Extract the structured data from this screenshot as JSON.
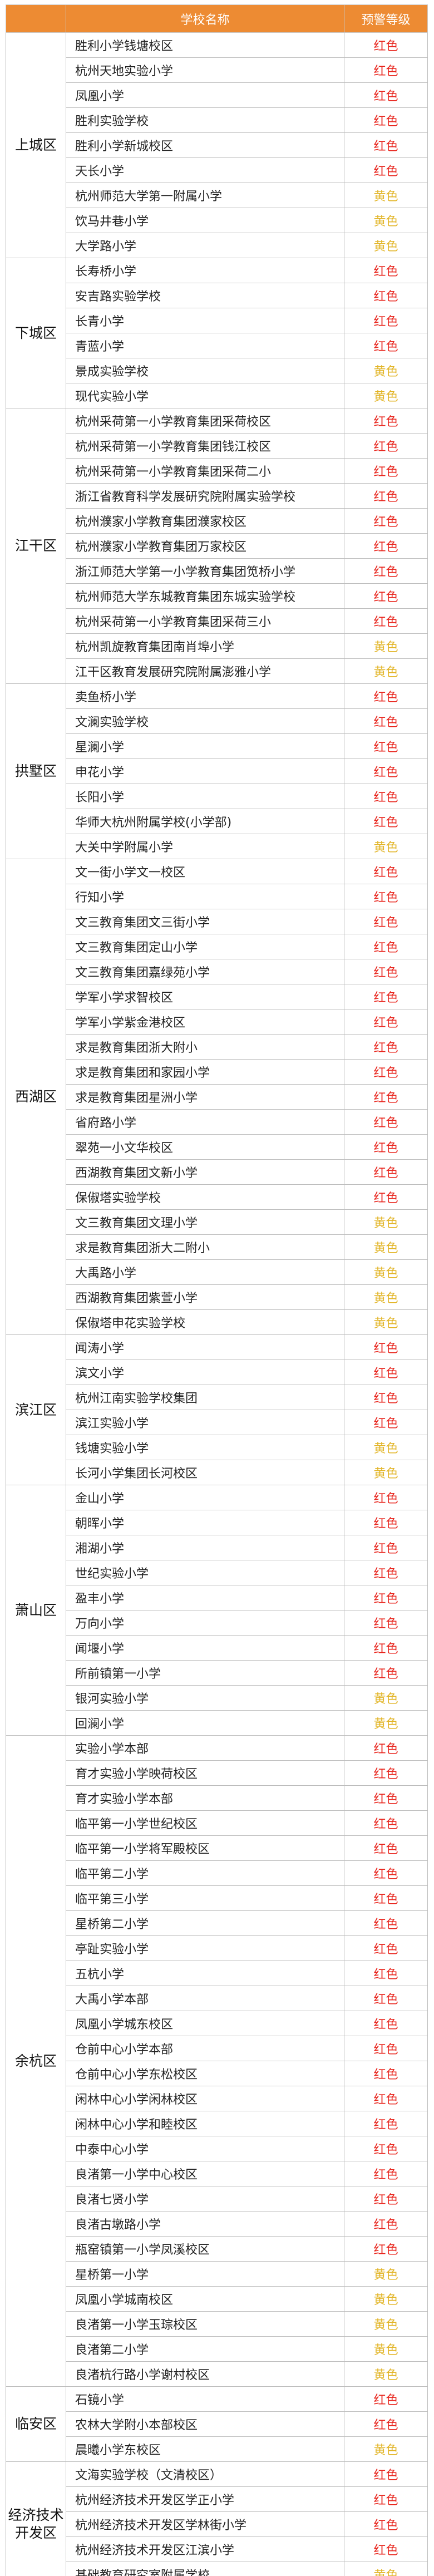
{
  "colors": {
    "header_bg": "#ed8b33",
    "red": "#e8261e",
    "yellow": "#e2b425"
  },
  "table": {
    "headers": [
      "",
      "学校名称",
      "预警等级"
    ],
    "groups": [
      {
        "district": "上城区",
        "rows": [
          [
            "胜利小学钱塘校区",
            "红色"
          ],
          [
            "杭州天地实验小学",
            "红色"
          ],
          [
            "凤凰小学",
            "红色"
          ],
          [
            "胜利实验学校",
            "红色"
          ],
          [
            "胜利小学新城校区",
            "红色"
          ],
          [
            "天长小学",
            "红色"
          ],
          [
            "杭州师范大学第一附属小学",
            "黄色"
          ],
          [
            "饮马井巷小学",
            "黄色"
          ],
          [
            "大学路小学",
            "黄色"
          ]
        ]
      },
      {
        "district": "下城区",
        "rows": [
          [
            "长寿桥小学",
            "红色"
          ],
          [
            "安吉路实验学校",
            "红色"
          ],
          [
            "长青小学",
            "红色"
          ],
          [
            "青蓝小学",
            "红色"
          ],
          [
            "景成实验学校",
            "黄色"
          ],
          [
            "现代实验小学",
            "黄色"
          ]
        ]
      },
      {
        "district": "江干区",
        "rows": [
          [
            "杭州采荷第一小学教育集团采荷校区",
            "红色"
          ],
          [
            "杭州采荷第一小学教育集团钱江校区",
            "红色"
          ],
          [
            "杭州采荷第一小学教育集团采荷二小",
            "红色"
          ],
          [
            "浙江省教育科学发展研究院附属实验学校",
            "红色"
          ],
          [
            "杭州濮家小学教育集团濮家校区",
            "红色"
          ],
          [
            "杭州濮家小学教育集团万家校区",
            "红色"
          ],
          [
            "浙江师范大学第一小学教育集团笕桥小学",
            "红色"
          ],
          [
            "杭州师范大学东城教育集团东城实验学校",
            "红色"
          ],
          [
            "杭州采荷第一小学教育集团采荷三小",
            "红色"
          ],
          [
            "杭州凯旋教育集团南肖埠小学",
            "黄色"
          ],
          [
            "江干区教育发展研究院附属澎雅小学",
            "黄色"
          ]
        ]
      },
      {
        "district": "拱墅区",
        "rows": [
          [
            "卖鱼桥小学",
            "红色"
          ],
          [
            "文澜实验学校",
            "红色"
          ],
          [
            "星澜小学",
            "红色"
          ],
          [
            "申花小学",
            "红色"
          ],
          [
            "长阳小学",
            "红色"
          ],
          [
            "华师大杭州附属学校(小学部)",
            "红色"
          ],
          [
            "大关中学附属小学",
            "黄色"
          ]
        ]
      },
      {
        "district": "西湖区",
        "rows": [
          [
            "文一街小学文一校区",
            "红色"
          ],
          [
            "行知小学",
            "红色"
          ],
          [
            "文三教育集团文三街小学",
            "红色"
          ],
          [
            "文三教育集团定山小学",
            "红色"
          ],
          [
            "文三教育集团嘉绿苑小学",
            "红色"
          ],
          [
            "学军小学求智校区",
            "红色"
          ],
          [
            "学军小学紫金港校区",
            "红色"
          ],
          [
            "求是教育集团浙大附小",
            "红色"
          ],
          [
            "求是教育集团和家园小学",
            "红色"
          ],
          [
            "求是教育集团星洲小学",
            "红色"
          ],
          [
            "省府路小学",
            "红色"
          ],
          [
            "翠苑一小文华校区",
            "红色"
          ],
          [
            "西湖教育集团文新小学",
            "红色"
          ],
          [
            "保俶塔实验学校",
            "红色"
          ],
          [
            "文三教育集团文理小学",
            "黄色"
          ],
          [
            "求是教育集团浙大二附小",
            "黄色"
          ],
          [
            "大禹路小学",
            "黄色"
          ],
          [
            "西湖教育集团紫萱小学",
            "黄色"
          ],
          [
            "保俶塔申花实验学校",
            "黄色"
          ]
        ]
      },
      {
        "district": "滨江区",
        "rows": [
          [
            "闻涛小学",
            "红色"
          ],
          [
            "滨文小学",
            "红色"
          ],
          [
            "杭州江南实验学校集团",
            "红色"
          ],
          [
            "滨江实验小学",
            "红色"
          ],
          [
            "钱塘实验小学",
            "黄色"
          ],
          [
            "长河小学集团长河校区",
            "黄色"
          ]
        ]
      },
      {
        "district": "萧山区",
        "rows": [
          [
            "金山小学",
            "红色"
          ],
          [
            "朝晖小学",
            "红色"
          ],
          [
            "湘湖小学",
            "红色"
          ],
          [
            "世纪实验小学",
            "红色"
          ],
          [
            "盈丰小学",
            "红色"
          ],
          [
            "万向小学",
            "红色"
          ],
          [
            "闻堰小学",
            "红色"
          ],
          [
            "所前镇第一小学",
            "红色"
          ],
          [
            "银河实验小学",
            "黄色"
          ],
          [
            "回澜小学",
            "黄色"
          ]
        ]
      },
      {
        "district": "余杭区",
        "rows": [
          [
            "实验小学本部",
            "红色"
          ],
          [
            "育才实验小学映荷校区",
            "红色"
          ],
          [
            "育才实验小学本部",
            "红色"
          ],
          [
            "临平第一小学世纪校区",
            "红色"
          ],
          [
            "临平第一小学将军殿校区",
            "红色"
          ],
          [
            "临平第二小学",
            "红色"
          ],
          [
            "临平第三小学",
            "红色"
          ],
          [
            "星桥第二小学",
            "红色"
          ],
          [
            "亭趾实验小学",
            "红色"
          ],
          [
            "五杭小学",
            "红色"
          ],
          [
            "大禹小学本部",
            "红色"
          ],
          [
            "凤凰小学城东校区",
            "红色"
          ],
          [
            "仓前中心小学本部",
            "红色"
          ],
          [
            "仓前中心小学东松校区",
            "红色"
          ],
          [
            "闲林中心小学闲林校区",
            "红色"
          ],
          [
            "闲林中心小学和睦校区",
            "红色"
          ],
          [
            "中泰中心小学",
            "红色"
          ],
          [
            "良渚第一小学中心校区",
            "红色"
          ],
          [
            "良渚七贤小学",
            "红色"
          ],
          [
            "良渚古墩路小学",
            "红色"
          ],
          [
            "瓶窑镇第一小学凤溪校区",
            "红色"
          ],
          [
            "星桥第一小学",
            "黄色"
          ],
          [
            "凤凰小学城南校区",
            "黄色"
          ],
          [
            "良渚第一小学玉琮校区",
            "黄色"
          ],
          [
            "良渚第二小学",
            "黄色"
          ],
          [
            "良渚杭行路小学谢村校区",
            "黄色"
          ]
        ]
      },
      {
        "district": "临安区",
        "rows": [
          [
            "石镜小学",
            "红色"
          ],
          [
            "农林大学附小本部校区",
            "红色"
          ],
          [
            "晨曦小学东校区",
            "黄色"
          ]
        ]
      },
      {
        "district": "经济技术开发区",
        "district_lines": [
          "经济技术",
          "开发区"
        ],
        "rows": [
          [
            "文海实验学校（文清校区）",
            "红色"
          ],
          [
            "杭州经济技术开发区学正小学",
            "红色"
          ],
          [
            "杭州经济技术开发区学林街小学",
            "红色"
          ],
          [
            "杭州经济技术开发区江滨小学",
            "红色"
          ],
          [
            "基础教育研究室附属学校",
            "黄色"
          ]
        ]
      }
    ]
  }
}
